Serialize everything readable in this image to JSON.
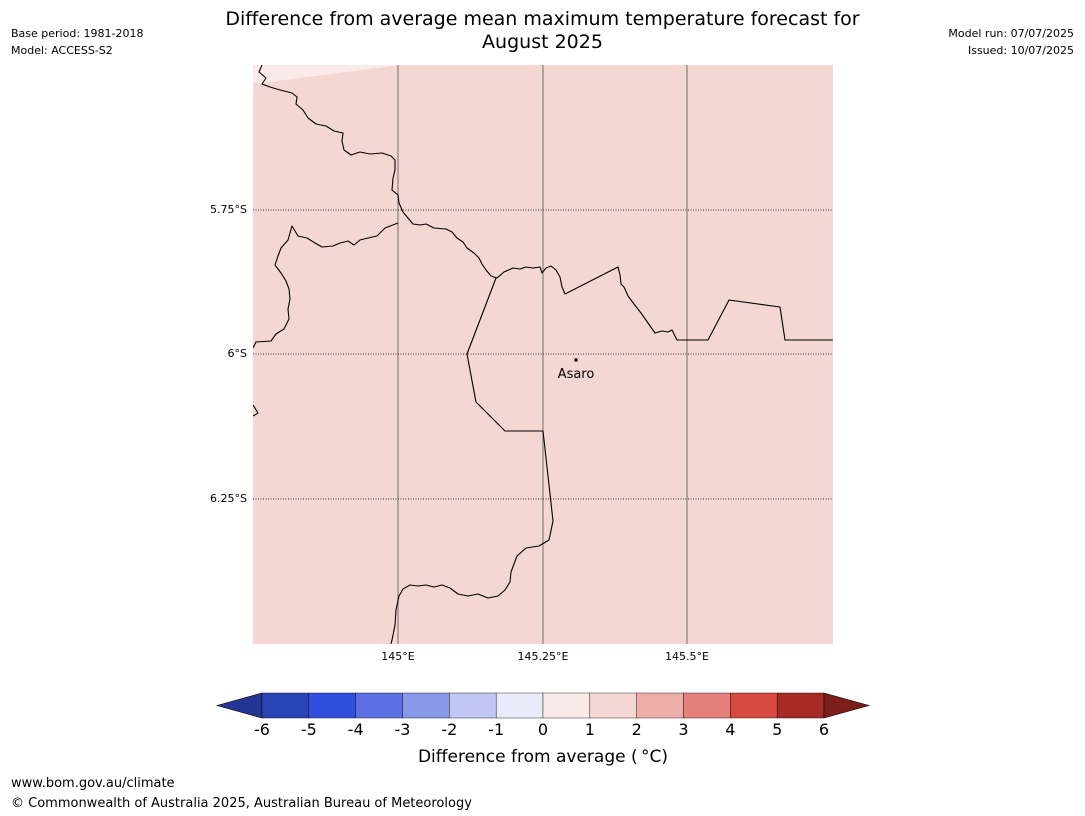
{
  "header": {
    "base_period": "Base period: 1981-2018",
    "model": "Model: ACCESS-S2",
    "model_run": "Model run: 07/07/2025",
    "issued": "Issued: 10/07/2025",
    "title_line1": "Difference from average mean maximum temperature forecast for",
    "title_line2": "August 2025"
  },
  "map": {
    "lat_labels": [
      "5.75°S",
      "6°S",
      "6.25°S"
    ],
    "lon_labels": [
      "145°E",
      "145.25°E",
      "145.5°E"
    ],
    "place": {
      "name": "Asaro",
      "lon": 145.3,
      "lat": -6.01
    },
    "fill_color": "#f4d6d3",
    "corner_color": "#fbebe8"
  },
  "colorbar": {
    "ticks": [
      "-6",
      "-5",
      "-4",
      "-3",
      "-2",
      "-1",
      "0",
      "1",
      "2",
      "3",
      "4",
      "5",
      "6"
    ],
    "colors": [
      "#253594",
      "#2944b5",
      "#304fde",
      "#5c70e3",
      "#8899ea",
      "#c0c7f5",
      "#e9ebfb",
      "#fbebe8",
      "#f4d6d3",
      "#eeaea8",
      "#e5807b",
      "#d84a41",
      "#a82a25",
      "#7c1f1b"
    ],
    "label": "Difference from average ( °C)"
  },
  "footer": {
    "url": "www.bom.gov.au/climate",
    "copyright": "© Commonwealth of Australia 2025, Australian Bureau of Meteorology"
  }
}
